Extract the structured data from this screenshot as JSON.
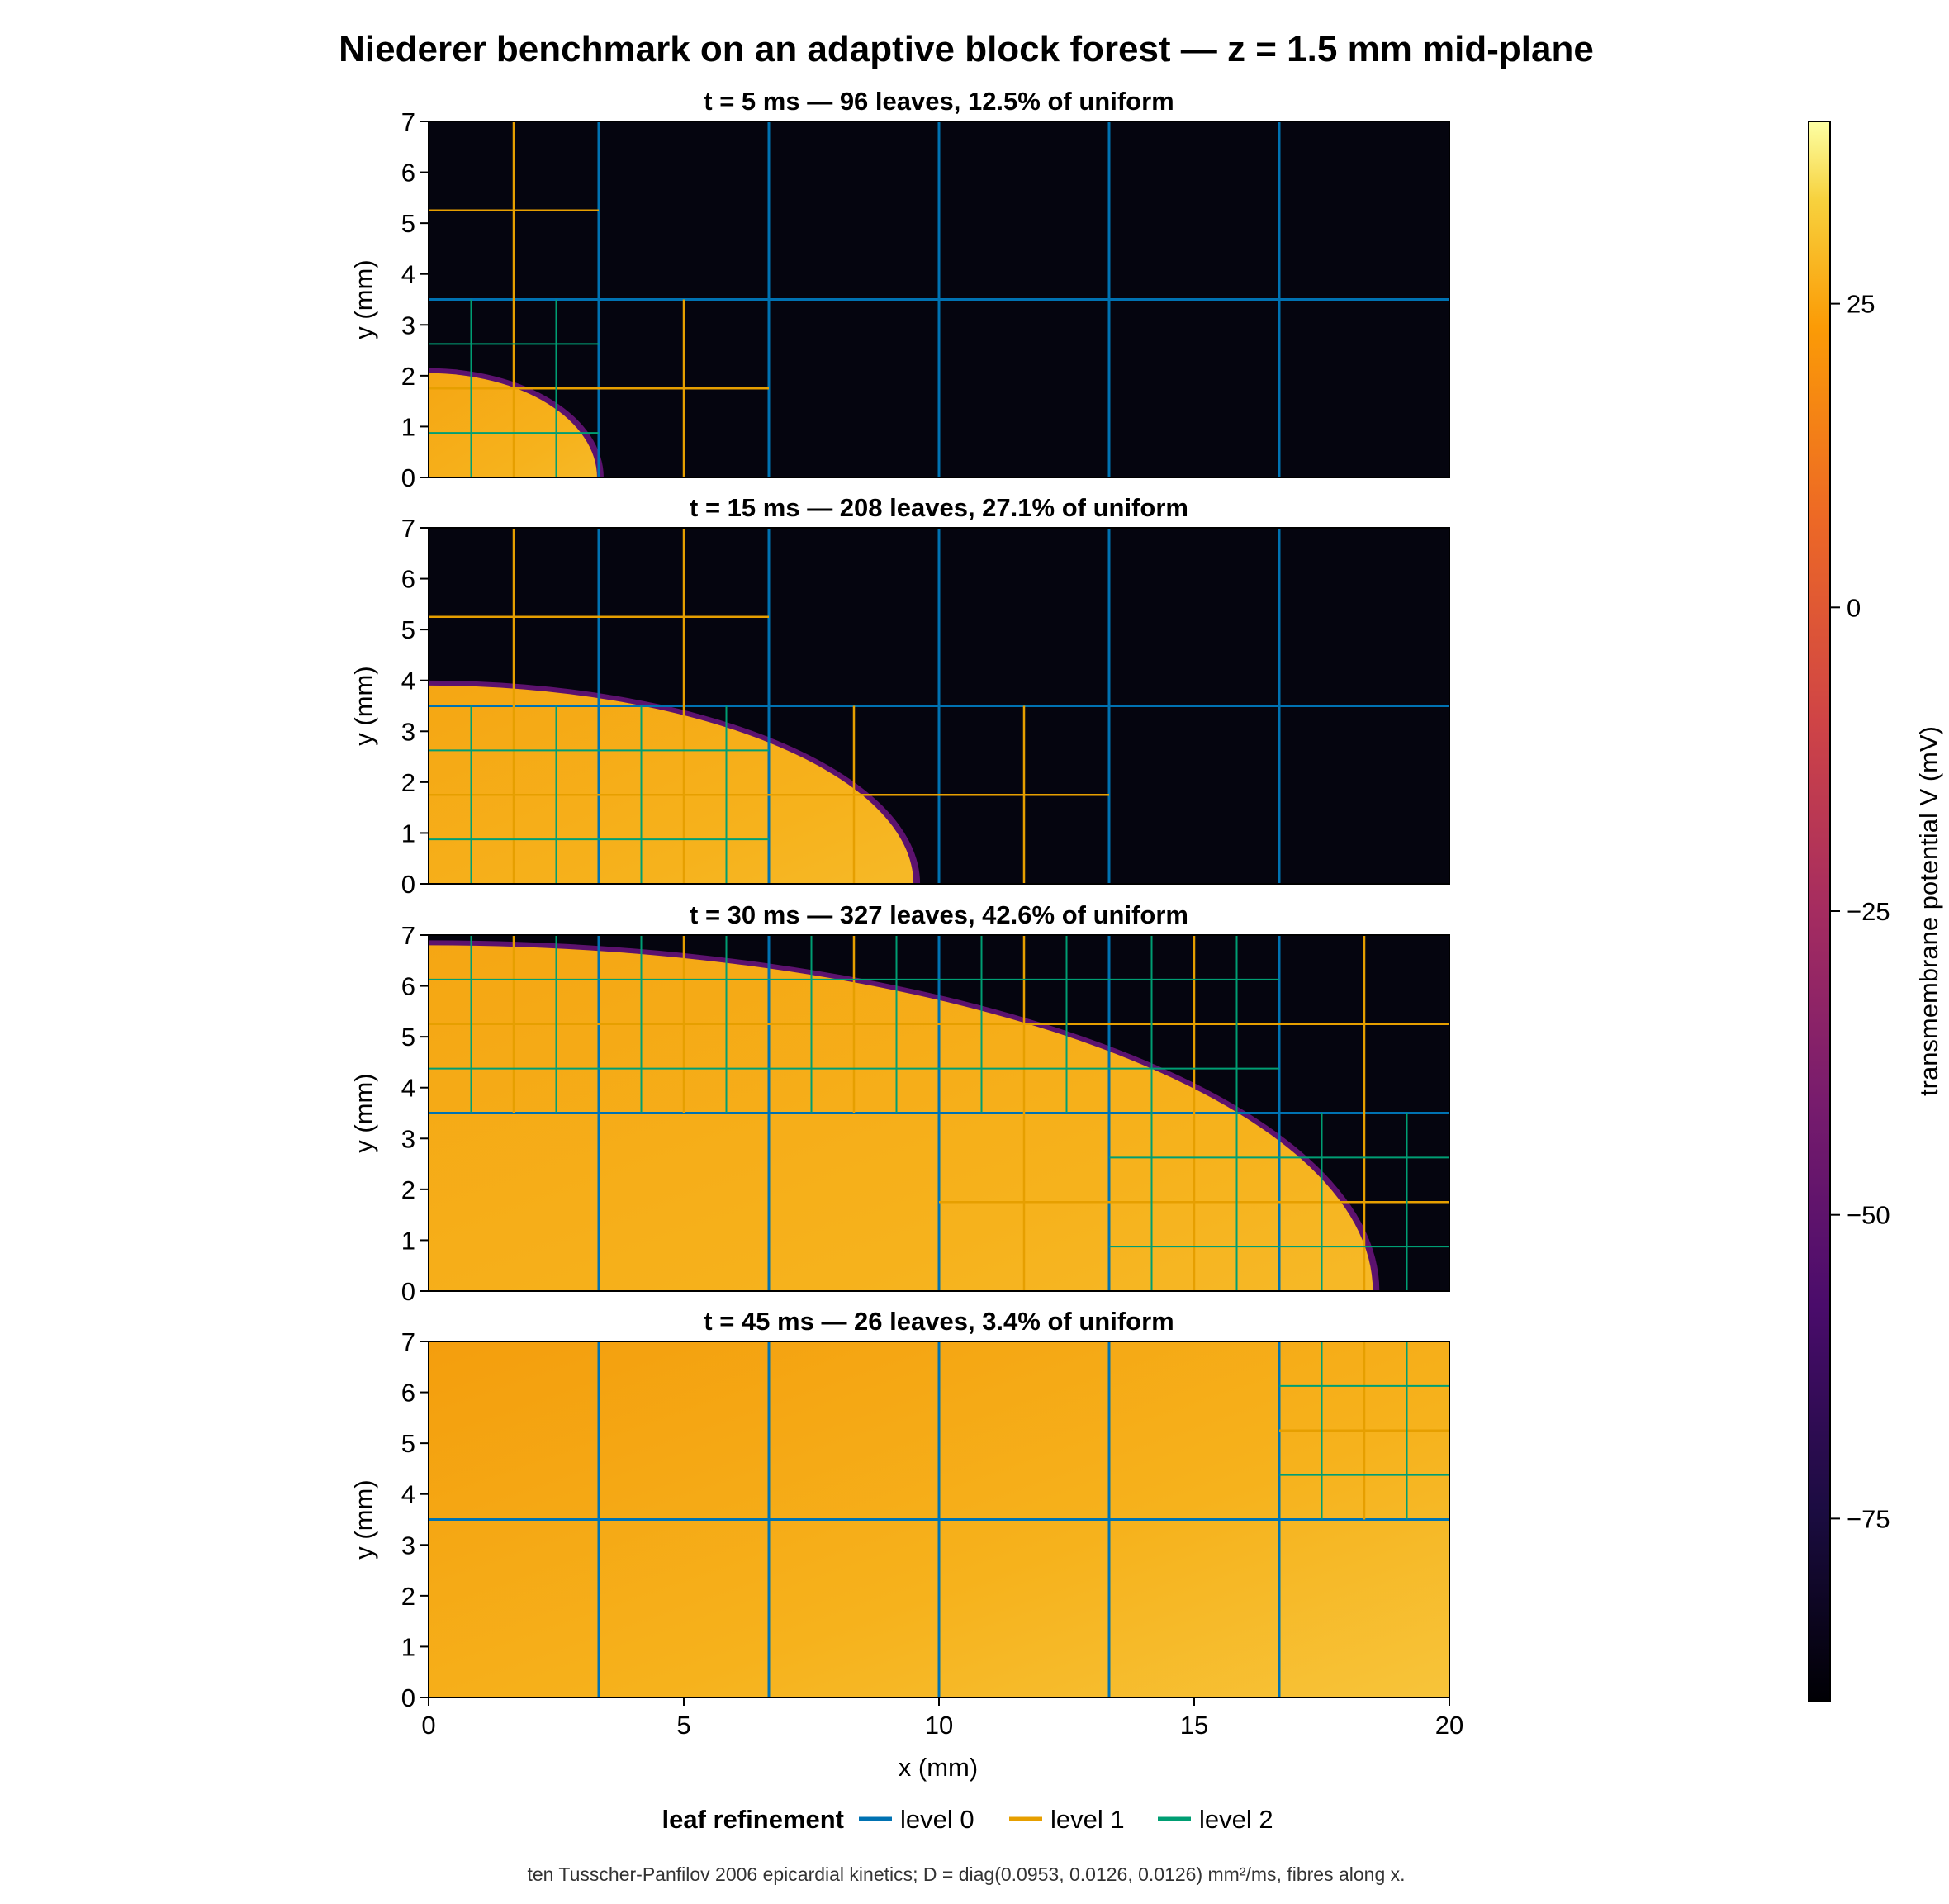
{
  "title": "Niederer benchmark on an adaptive block forest — z = 1.5 mm mid-plane",
  "caption": "ten Tusscher-Panfilov 2006 epicardial kinetics; D = diag(0.0953, 0.0126, 0.0126) mm²/ms, fibres along x.",
  "chart_data": {
    "type": "heatmap",
    "xlabel": "x (mm)",
    "ylabel": "y (mm)",
    "xlim": [
      0,
      20
    ],
    "ylim": [
      0,
      7
    ],
    "x_ticks": [
      "0",
      "5",
      "10",
      "15",
      "20"
    ],
    "y_ticks": [
      "0",
      "1",
      "2",
      "3",
      "4",
      "5",
      "6",
      "7"
    ],
    "colorbar": {
      "label": "transmembrane potential V (mV)",
      "range": [
        -90,
        40
      ],
      "colormap": "inferno",
      "ticks": [
        "25",
        "0",
        "−25",
        "−50",
        "−75"
      ],
      "tick_values": [
        25,
        0,
        -25,
        -50,
        -75
      ]
    },
    "legend": {
      "title": "leaf refinement",
      "placement": "bottom",
      "entries": [
        {
          "label": "level 0",
          "color": "#0072b2"
        },
        {
          "label": "level 1",
          "color": "#e69f00"
        },
        {
          "label": "level 2",
          "color": "#009e73"
        }
      ]
    },
    "panels": [
      {
        "title": "t = 5 ms — 96 leaves, 12.5% of uniform",
        "t_ms": 5,
        "leaves": 96,
        "percent_uniform": 12.5,
        "wavefront": {
          "x_extent_mm": 3.3,
          "y_extent_mm": 2.05
        }
      },
      {
        "title": "t = 15 ms — 208 leaves, 27.1% of uniform",
        "t_ms": 15,
        "leaves": 208,
        "percent_uniform": 27.1,
        "wavefront": {
          "x_extent_mm": 9.5,
          "y_extent_mm": 3.9
        }
      },
      {
        "title": "t = 30 ms — 327 leaves, 42.6% of uniform",
        "t_ms": 30,
        "leaves": 327,
        "percent_uniform": 42.6,
        "wavefront": {
          "x_extent_mm": 18.5,
          "y_extent_mm": 6.8
        }
      },
      {
        "title": "t = 45 ms — 26 leaves, 3.4% of uniform",
        "t_ms": 45,
        "leaves": 26,
        "percent_uniform": 3.4,
        "wavefront": {
          "x_extent_mm": 20,
          "y_extent_mm": 7
        }
      }
    ]
  },
  "colors": {
    "rest": "#05050f",
    "excited": "#f6b21c",
    "excited_dark": "#f49e0d",
    "front": "#5c126e"
  }
}
